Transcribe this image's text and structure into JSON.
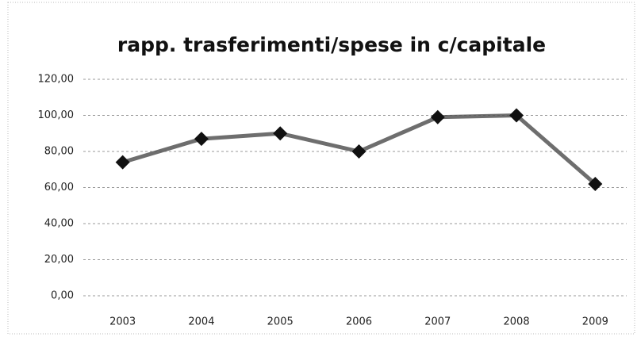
{
  "chart_data": {
    "type": "line",
    "title": "rapp. trasferimenti/spese in c/capitale",
    "categories": [
      "2003",
      "2004",
      "2005",
      "2006",
      "2007",
      "2008",
      "2009"
    ],
    "series": [
      {
        "color": "#555555",
        "values": [
          74,
          87,
          90,
          80,
          99,
          100,
          62
        ]
      }
    ],
    "ylim": [
      0,
      120
    ],
    "yticks": [
      {
        "value": 0,
        "label": "0,00"
      },
      {
        "value": 20,
        "label": "20,00"
      },
      {
        "value": 40,
        "label": "40,00"
      },
      {
        "value": 60,
        "label": "60,00"
      },
      {
        "value": 80,
        "label": "80,00"
      },
      {
        "value": 100,
        "label": "100,00"
      },
      {
        "value": 120,
        "label": "120,00"
      }
    ],
    "grid": true
  }
}
